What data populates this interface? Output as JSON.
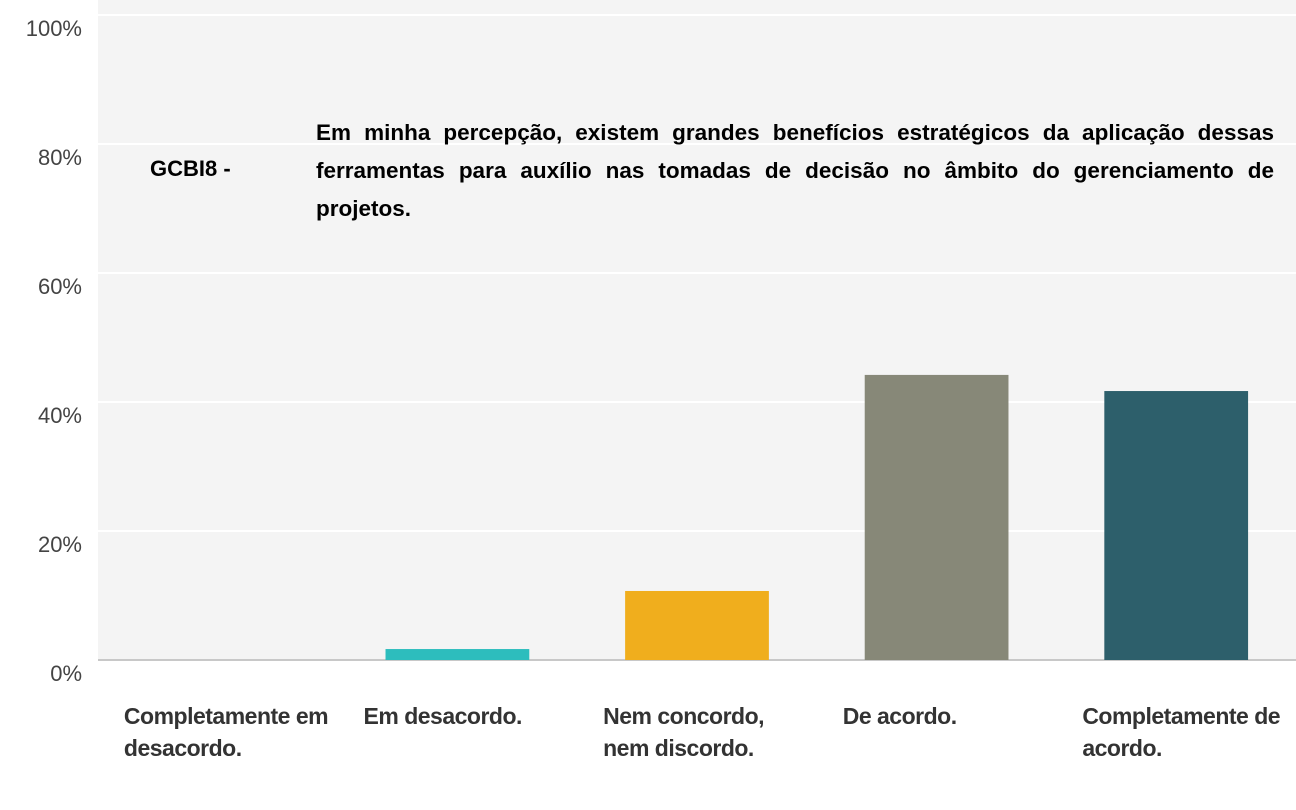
{
  "chart_data": {
    "type": "bar",
    "title": "GCBI8 -",
    "subtitle": "Em minha percepção, existem grandes benefícios estratégicos da aplicação dessas ferramentas para auxílio nas tomadas de decisão no âmbito do gerenciamento de projetos.",
    "categories": [
      "Completamente em desacordo.",
      "Em desacordo.",
      "Nem concordo, nem discordo.",
      "De acordo.",
      "Completamente de acordo."
    ],
    "values": [
      0,
      1.7,
      10.7,
      44.2,
      41.7
    ],
    "colors": [
      "#2dbdbd",
      "#2dbdbd",
      "#f0ae1d",
      "#878878",
      "#2d5f6b"
    ],
    "ylim": [
      0,
      100
    ],
    "yticks": [
      {
        "value": 0,
        "label": "0%"
      },
      {
        "value": 20,
        "label": "20%"
      },
      {
        "value": 40,
        "label": "40%"
      },
      {
        "value": 60,
        "label": "60%"
      },
      {
        "value": 80,
        "label": "80%"
      },
      {
        "value": 100,
        "label": "100%"
      }
    ],
    "grid": true
  }
}
